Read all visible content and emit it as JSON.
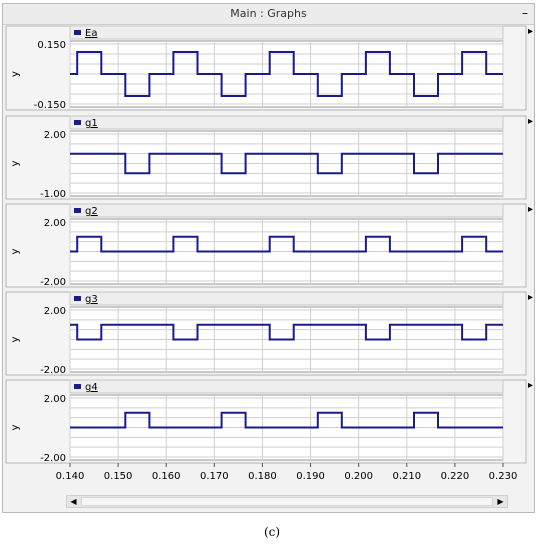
{
  "window": {
    "title": "Main : Graphs",
    "minimize_label": "–"
  },
  "caption": "(c)",
  "scrollbar": {
    "left_arrow": "◀",
    "right_arrow": "▶"
  },
  "colors": {
    "trace": "#1a1a8c",
    "legend_swatch": "#1a1a8c",
    "grid": "#cfcfcf",
    "plot_bg": "#ffffff"
  },
  "chart_data": {
    "type": "line",
    "xlim": [
      0.14,
      0.23
    ],
    "x_ticks": [
      "0.140",
      "0.150",
      "0.160",
      "0.170",
      "0.180",
      "0.190",
      "0.200",
      "0.210",
      "0.220",
      "0.230"
    ],
    "grid": true,
    "panels": [
      {
        "name": "Ea",
        "ylabel": "y",
        "ylim": [
          -0.15,
          0.15
        ],
        "y_tick_labels": [
          "0.150",
          "-0.150"
        ],
        "x": [
          0.14,
          0.1415,
          0.1415,
          0.1465,
          0.1465,
          0.1515,
          0.1515,
          0.1565,
          0.1565,
          0.1615,
          0.1615,
          0.1665,
          0.1665,
          0.1715,
          0.1715,
          0.1765,
          0.1765,
          0.1815,
          0.1815,
          0.1865,
          0.1865,
          0.1915,
          0.1915,
          0.1965,
          0.1965,
          0.2015,
          0.2015,
          0.2065,
          0.2065,
          0.2115,
          0.2115,
          0.2165,
          0.2165,
          0.2215,
          0.2215,
          0.2265,
          0.2265,
          0.23
        ],
        "y": [
          0,
          0,
          0.11,
          0.11,
          0,
          0,
          -0.11,
          -0.11,
          0,
          0,
          0.11,
          0.11,
          0,
          0,
          -0.11,
          -0.11,
          0,
          0,
          0.11,
          0.11,
          0,
          0,
          -0.11,
          -0.11,
          0,
          0,
          0.11,
          0.11,
          0,
          0,
          -0.11,
          -0.11,
          0,
          0,
          0.11,
          0.11,
          0,
          0
        ]
      },
      {
        "name": "g1",
        "ylabel": "y",
        "ylim": [
          -1.0,
          2.0
        ],
        "y_tick_labels": [
          "2.00",
          "-1.00"
        ],
        "x": [
          0.14,
          0.1515,
          0.1515,
          0.1565,
          0.1565,
          0.1715,
          0.1715,
          0.1765,
          0.1765,
          0.1915,
          0.1915,
          0.1965,
          0.1965,
          0.2115,
          0.2115,
          0.2165,
          0.2165,
          0.23
        ],
        "y": [
          1,
          1,
          0,
          0,
          1,
          1,
          0,
          0,
          1,
          1,
          0,
          0,
          1,
          1,
          0,
          0,
          1,
          1
        ]
      },
      {
        "name": "g2",
        "ylabel": "y",
        "ylim": [
          -2.0,
          2.0
        ],
        "y_tick_labels": [
          "2.00",
          "-2.00"
        ],
        "x": [
          0.14,
          0.1415,
          0.1415,
          0.1465,
          0.1465,
          0.1615,
          0.1615,
          0.1665,
          0.1665,
          0.1815,
          0.1815,
          0.1865,
          0.1865,
          0.2015,
          0.2015,
          0.2065,
          0.2065,
          0.2215,
          0.2215,
          0.2265,
          0.2265,
          0.23
        ],
        "y": [
          0,
          0,
          1,
          1,
          0,
          0,
          1,
          1,
          0,
          0,
          1,
          1,
          0,
          0,
          1,
          1,
          0,
          0,
          1,
          1,
          0,
          0
        ]
      },
      {
        "name": "g3",
        "ylabel": "y",
        "ylim": [
          -2.0,
          2.0
        ],
        "y_tick_labels": [
          "2.00",
          "-2.00"
        ],
        "x": [
          0.14,
          0.1415,
          0.1415,
          0.1465,
          0.1465,
          0.1615,
          0.1615,
          0.1665,
          0.1665,
          0.1815,
          0.1815,
          0.1865,
          0.1865,
          0.2015,
          0.2015,
          0.2065,
          0.2065,
          0.2215,
          0.2215,
          0.2265,
          0.2265,
          0.23
        ],
        "y": [
          1,
          1,
          0,
          0,
          1,
          1,
          0,
          0,
          1,
          1,
          0,
          0,
          1,
          1,
          0,
          0,
          1,
          1,
          0,
          0,
          1,
          1
        ]
      },
      {
        "name": "g4",
        "ylabel": "y",
        "ylim": [
          -2.0,
          2.0
        ],
        "y_tick_labels": [
          "2.00",
          "-2.00"
        ],
        "x": [
          0.14,
          0.1515,
          0.1515,
          0.1565,
          0.1565,
          0.1715,
          0.1715,
          0.1765,
          0.1765,
          0.1915,
          0.1915,
          0.1965,
          0.1965,
          0.2115,
          0.2115,
          0.2165,
          0.2165,
          0.23
        ],
        "y": [
          0,
          0,
          1,
          1,
          0,
          0,
          1,
          1,
          0,
          0,
          1,
          1,
          0,
          0,
          1,
          1,
          0,
          0
        ]
      }
    ]
  }
}
